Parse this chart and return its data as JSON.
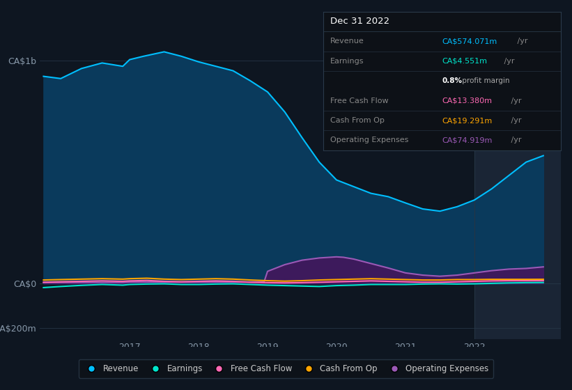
{
  "bg_color": "#0e1621",
  "plot_bg_color": "#0e1621",
  "highlight_bg_color": "#1a2535",
  "y_labels": [
    "CA$1b",
    "CA$0",
    "-CA$200m"
  ],
  "y_ticks": [
    1000,
    0,
    -200
  ],
  "x_ticks": [
    2017,
    2018,
    2019,
    2020,
    2021,
    2022
  ],
  "ylim": [
    -250,
    1150
  ],
  "xlim_start": 2015.7,
  "xlim_end": 2023.25,
  "highlight_start": 2022.0,
  "highlight_end": 2023.25,
  "series": {
    "revenue": {
      "color": "#00bfff",
      "fill_color": "#0a3a5c",
      "x": [
        2015.75,
        2016.0,
        2016.3,
        2016.6,
        2016.9,
        2017.0,
        2017.2,
        2017.5,
        2017.75,
        2018.0,
        2018.25,
        2018.5,
        2018.75,
        2019.0,
        2019.25,
        2019.5,
        2019.75,
        2020.0,
        2020.25,
        2020.5,
        2020.75,
        2021.0,
        2021.25,
        2021.5,
        2021.75,
        2022.0,
        2022.25,
        2022.5,
        2022.75,
        2023.0
      ],
      "y": [
        930,
        920,
        965,
        990,
        975,
        1005,
        1020,
        1040,
        1020,
        995,
        975,
        955,
        910,
        860,
        770,
        655,
        545,
        465,
        435,
        405,
        390,
        362,
        335,
        325,
        345,
        375,
        425,
        485,
        545,
        574
      ]
    },
    "earnings": {
      "color": "#00e5cc",
      "x": [
        2015.75,
        2016.0,
        2016.3,
        2016.6,
        2016.9,
        2017.0,
        2017.25,
        2017.5,
        2017.75,
        2018.0,
        2018.25,
        2018.5,
        2018.75,
        2019.0,
        2019.25,
        2019.5,
        2019.75,
        2020.0,
        2020.25,
        2020.5,
        2020.75,
        2021.0,
        2021.25,
        2021.5,
        2021.75,
        2022.0,
        2022.25,
        2022.5,
        2022.75,
        2023.0
      ],
      "y": [
        -18,
        -13,
        -8,
        -4,
        -7,
        -4,
        -2,
        -1,
        -4,
        -4,
        -2,
        -1,
        -4,
        -7,
        -9,
        -11,
        -13,
        -9,
        -7,
        -4,
        -4,
        -4,
        -2,
        -1,
        -2,
        -1,
        1,
        3,
        4,
        4.551
      ]
    },
    "free_cash_flow": {
      "color": "#ff69b4",
      "x": [
        2015.75,
        2016.0,
        2016.3,
        2016.6,
        2016.9,
        2017.0,
        2017.25,
        2017.5,
        2017.75,
        2018.0,
        2018.25,
        2018.5,
        2018.75,
        2019.0,
        2019.25,
        2019.5,
        2019.75,
        2020.0,
        2020.25,
        2020.5,
        2020.75,
        2021.0,
        2021.25,
        2021.5,
        2021.75,
        2022.0,
        2022.25,
        2022.5,
        2022.75,
        2023.0
      ],
      "y": [
        6,
        8,
        10,
        12,
        10,
        12,
        14,
        10,
        8,
        10,
        12,
        10,
        6,
        4,
        3,
        4,
        6,
        8,
        10,
        12,
        10,
        8,
        6,
        6,
        8,
        10,
        12,
        13,
        13,
        13.38
      ]
    },
    "cash_from_op": {
      "color": "#ffa500",
      "x": [
        2015.75,
        2016.0,
        2016.3,
        2016.6,
        2016.9,
        2017.0,
        2017.25,
        2017.5,
        2017.75,
        2018.0,
        2018.25,
        2018.5,
        2018.75,
        2019.0,
        2019.25,
        2019.5,
        2019.75,
        2020.0,
        2020.25,
        2020.5,
        2020.75,
        2021.0,
        2021.25,
        2021.5,
        2021.75,
        2022.0,
        2022.25,
        2022.5,
        2022.75,
        2023.0
      ],
      "y": [
        16,
        18,
        20,
        22,
        20,
        22,
        24,
        20,
        18,
        20,
        22,
        20,
        16,
        13,
        11,
        13,
        16,
        18,
        20,
        22,
        20,
        18,
        16,
        16,
        18,
        18,
        19,
        19,
        19,
        19.291
      ]
    },
    "operating_expenses": {
      "color": "#9b59b6",
      "fill_color": "#3d1a5c",
      "x": [
        2015.75,
        2016.0,
        2016.3,
        2016.6,
        2016.9,
        2017.0,
        2017.25,
        2017.5,
        2017.75,
        2018.0,
        2018.25,
        2018.5,
        2018.75,
        2018.95,
        2019.0,
        2019.25,
        2019.5,
        2019.75,
        2020.0,
        2020.1,
        2020.25,
        2020.5,
        2020.75,
        2021.0,
        2021.25,
        2021.5,
        2021.75,
        2022.0,
        2022.25,
        2022.5,
        2022.75,
        2023.0
      ],
      "y": [
        5,
        5,
        5,
        5,
        5,
        7,
        7,
        7,
        7,
        7,
        7,
        7,
        7,
        8,
        55,
        85,
        105,
        115,
        120,
        118,
        110,
        90,
        70,
        48,
        38,
        33,
        38,
        48,
        58,
        65,
        68,
        74.919
      ]
    }
  },
  "legend": [
    {
      "label": "Revenue",
      "color": "#00bfff"
    },
    {
      "label": "Earnings",
      "color": "#00e5cc"
    },
    {
      "label": "Free Cash Flow",
      "color": "#ff69b4"
    },
    {
      "label": "Cash From Op",
      "color": "#ffa500"
    },
    {
      "label": "Operating Expenses",
      "color": "#9b59b6"
    }
  ],
  "infobox": {
    "title": "Dec 31 2022",
    "title_color": "#ffffff",
    "bg_color": "#0d1117",
    "border_color": "#2a3a4a",
    "rows": [
      {
        "label": "Revenue",
        "label_color": "#888888",
        "value": "CA$574.071m",
        "value_color": "#00bfff",
        "suffix": " /yr",
        "sub": null
      },
      {
        "label": "Earnings",
        "label_color": "#888888",
        "value": "CA$4.551m",
        "value_color": "#00e5cc",
        "suffix": " /yr",
        "sub": "0.8% profit margin"
      },
      {
        "label": "Free Cash Flow",
        "label_color": "#888888",
        "value": "CA$13.380m",
        "value_color": "#ff69b4",
        "suffix": " /yr",
        "sub": null
      },
      {
        "label": "Cash From Op",
        "label_color": "#888888",
        "value": "CA$19.291m",
        "value_color": "#ffa500",
        "suffix": " /yr",
        "sub": null
      },
      {
        "label": "Operating Expenses",
        "label_color": "#888888",
        "value": "CA$74.919m",
        "value_color": "#9b59b6",
        "suffix": " /yr",
        "sub": null
      }
    ]
  }
}
